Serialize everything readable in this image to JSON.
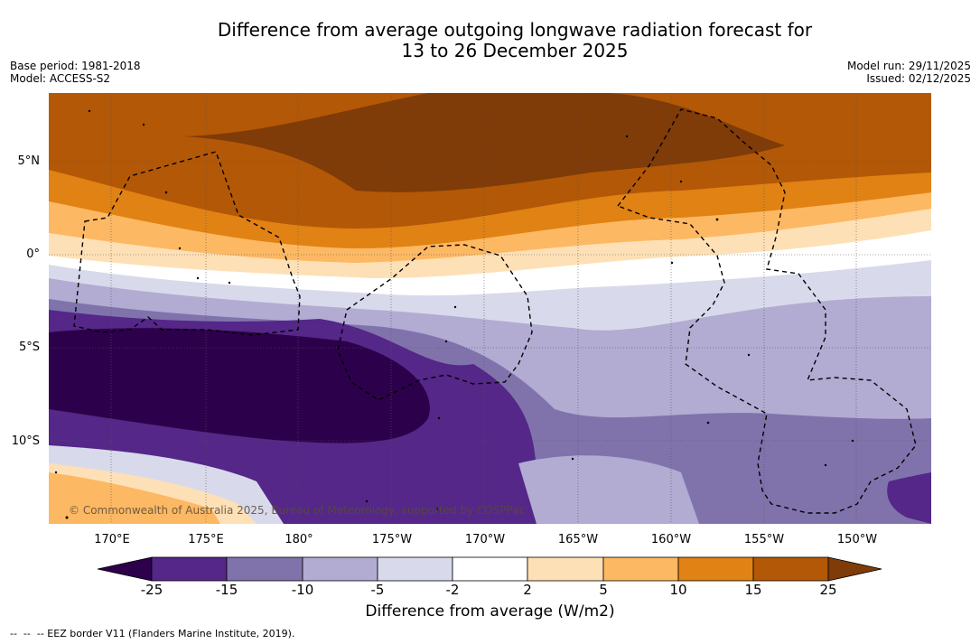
{
  "header": {
    "title_line1": "Difference from average outgoing longwave radiation forecast for",
    "title_line2": "13 to 26 December 2025",
    "base_period": "Base period: 1981-2018",
    "model": "Model: ACCESS-S2",
    "model_run": "Model run: 29/11/2025",
    "issued": "Issued: 02/12/2025"
  },
  "axes": {
    "lat_labels": [
      "5°N",
      "0°",
      "5°S",
      "10°S"
    ],
    "lon_labels": [
      "170°E",
      "175°E",
      "180°",
      "175°W",
      "170°W",
      "165°W",
      "160°W",
      "155°W",
      "150°W"
    ]
  },
  "colorbar": {
    "ticks": [
      "-25",
      "-15",
      "-10",
      "-5",
      "-2",
      "2",
      "5",
      "10",
      "15",
      "25"
    ],
    "colors": {
      "lt-25": "#2d004b",
      "-25to-15": "#542788",
      "-15to-10": "#8073ac",
      "-10to-5": "#b2abd2",
      "-5to-2": "#d8daeb",
      "-2to2": "#ffffff",
      "2to5": "#fee0b6",
      "5to10": "#fdb863",
      "10to15": "#e08214",
      "15to25": "#b35806",
      "gt25": "#7f3b08"
    },
    "label": "Difference from average (W/m2)"
  },
  "credit": "© Commonwealth of Australia 2025, Bureau of Meteorology, supported by COSPPac",
  "legend": "--  --  -- EEZ border V11 (Flanders Marine Institute, 2019)."
}
